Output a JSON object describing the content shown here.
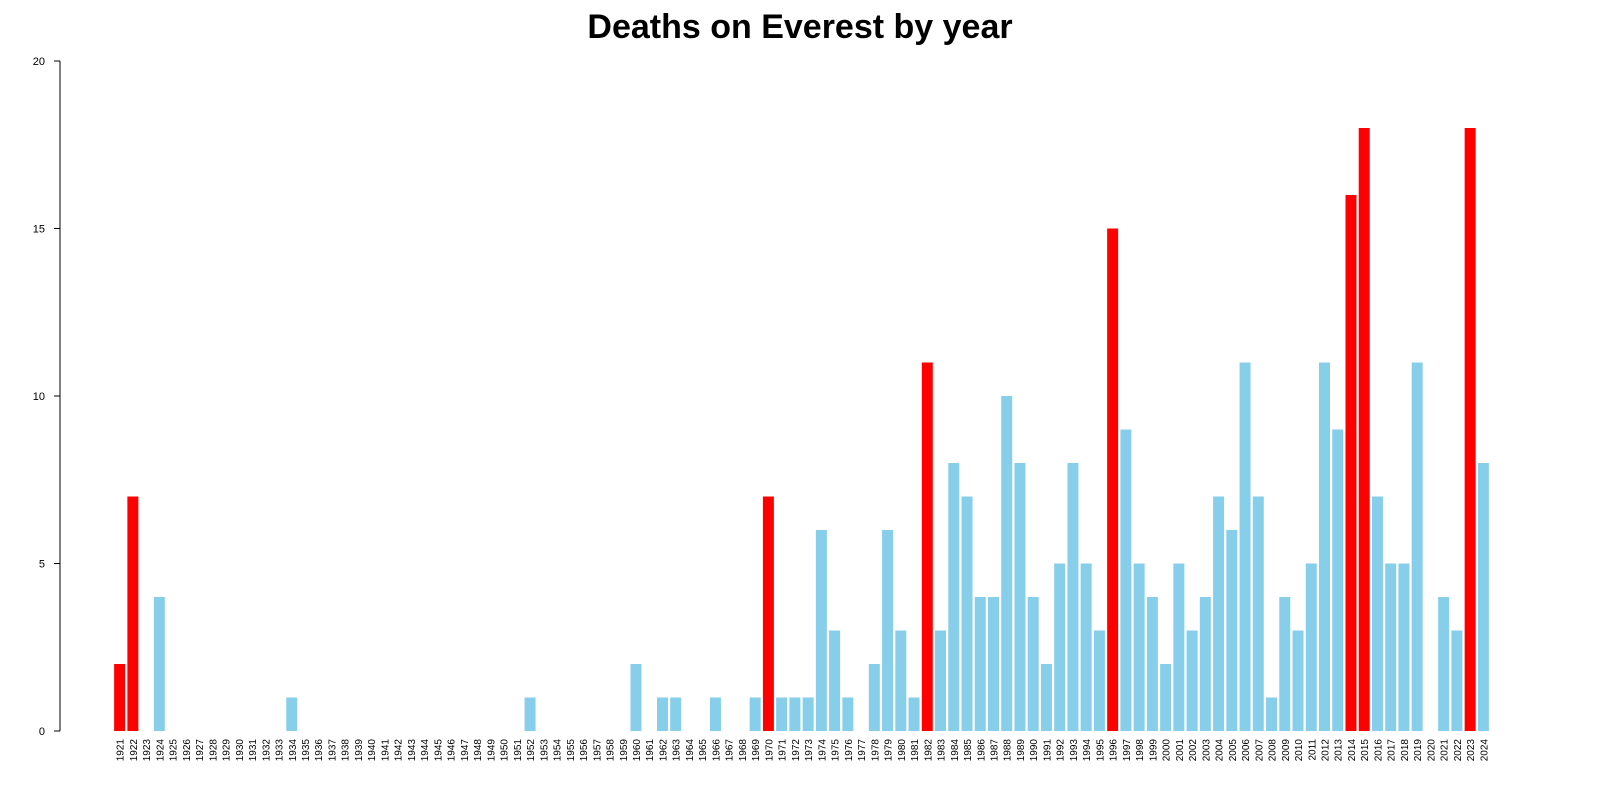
{
  "chart_data": {
    "type": "bar",
    "title": "Deaths on Everest by year",
    "xlabel": "",
    "ylabel": "",
    "ylim": [
      0,
      20
    ],
    "yticks": [
      "0",
      "5",
      "10",
      "15",
      "20"
    ],
    "grid": false,
    "legend": "none",
    "colors": {
      "normal": "#87CEEB",
      "highlight": "#FF0000",
      "axis": "#000000"
    },
    "categories": [
      "1921",
      "1922",
      "1923",
      "1924",
      "1925",
      "1926",
      "1927",
      "1928",
      "1929",
      "1930",
      "1931",
      "1932",
      "1933",
      "1934",
      "1935",
      "1936",
      "1937",
      "1938",
      "1939",
      "1940",
      "1941",
      "1942",
      "1943",
      "1944",
      "1945",
      "1946",
      "1947",
      "1948",
      "1949",
      "1950",
      "1951",
      "1952",
      "1953",
      "1954",
      "1955",
      "1956",
      "1957",
      "1958",
      "1959",
      "1960",
      "1961",
      "1962",
      "1963",
      "1964",
      "1965",
      "1966",
      "1967",
      "1968",
      "1969",
      "1970",
      "1971",
      "1972",
      "1973",
      "1974",
      "1975",
      "1976",
      "1977",
      "1978",
      "1979",
      "1980",
      "1981",
      "1982",
      "1983",
      "1984",
      "1985",
      "1986",
      "1987",
      "1988",
      "1989",
      "1990",
      "1991",
      "1992",
      "1993",
      "1994",
      "1995",
      "1996",
      "1997",
      "1998",
      "1999",
      "2000",
      "2001",
      "2002",
      "2003",
      "2004",
      "2005",
      "2006",
      "2007",
      "2008",
      "2009",
      "2010",
      "2011",
      "2012",
      "2013",
      "2014",
      "2015",
      "2016",
      "2017",
      "2018",
      "2019",
      "2020",
      "2021",
      "2022",
      "2023",
      "2024"
    ],
    "values": [
      2,
      7,
      0,
      4,
      0,
      0,
      0,
      0,
      0,
      0,
      0,
      0,
      0,
      1,
      0,
      0,
      0,
      0,
      0,
      0,
      0,
      0,
      0,
      0,
      0,
      0,
      0,
      0,
      0,
      0,
      0,
      1,
      0,
      0,
      0,
      0,
      0,
      0,
      0,
      2,
      0,
      1,
      1,
      0,
      0,
      1,
      0,
      0,
      1,
      7,
      1,
      1,
      1,
      6,
      3,
      1,
      0,
      2,
      6,
      3,
      1,
      11,
      3,
      8,
      7,
      4,
      4,
      10,
      8,
      4,
      2,
      5,
      8,
      5,
      3,
      15,
      9,
      5,
      4,
      2,
      5,
      3,
      4,
      7,
      6,
      11,
      7,
      1,
      4,
      3,
      5,
      11,
      9,
      16,
      18,
      7,
      5,
      5,
      11,
      0,
      4,
      3,
      18,
      8
    ],
    "highlighted_categories": [
      "1921",
      "1922",
      "1970",
      "1982",
      "1996",
      "2014",
      "2015",
      "2023"
    ]
  }
}
